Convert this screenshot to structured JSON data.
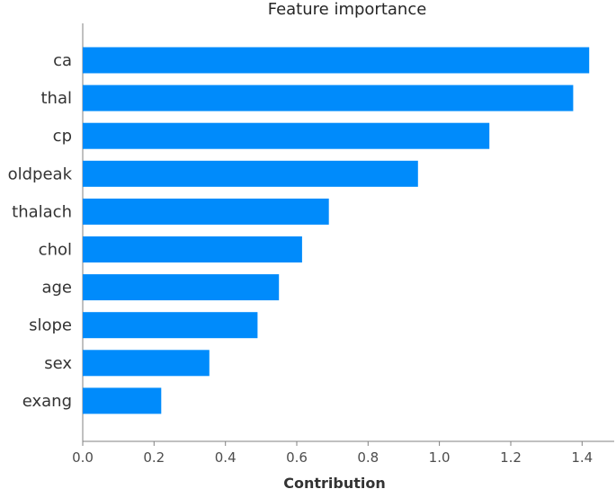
{
  "chart_data": {
    "type": "bar",
    "orientation": "horizontal",
    "title": "Feature importance",
    "xlabel": "Contribution",
    "ylabel": "",
    "categories": [
      "ca",
      "thal",
      "cp",
      "oldpeak",
      "thalach",
      "chol",
      "age",
      "slope",
      "sex",
      "exang"
    ],
    "values": [
      1.42,
      1.375,
      1.14,
      0.94,
      0.69,
      0.615,
      0.55,
      0.49,
      0.355,
      0.22
    ],
    "xlim": [
      0.0,
      1.49
    ],
    "xticks": [
      0.0,
      0.2,
      0.4,
      0.6,
      0.8,
      1.0,
      1.2,
      1.4
    ],
    "xtick_labels": [
      "0.0",
      "0.2",
      "0.4",
      "0.6",
      "0.8",
      "1.0",
      "1.2",
      "1.4"
    ],
    "grid": false,
    "bar_color": "#008bfb"
  }
}
